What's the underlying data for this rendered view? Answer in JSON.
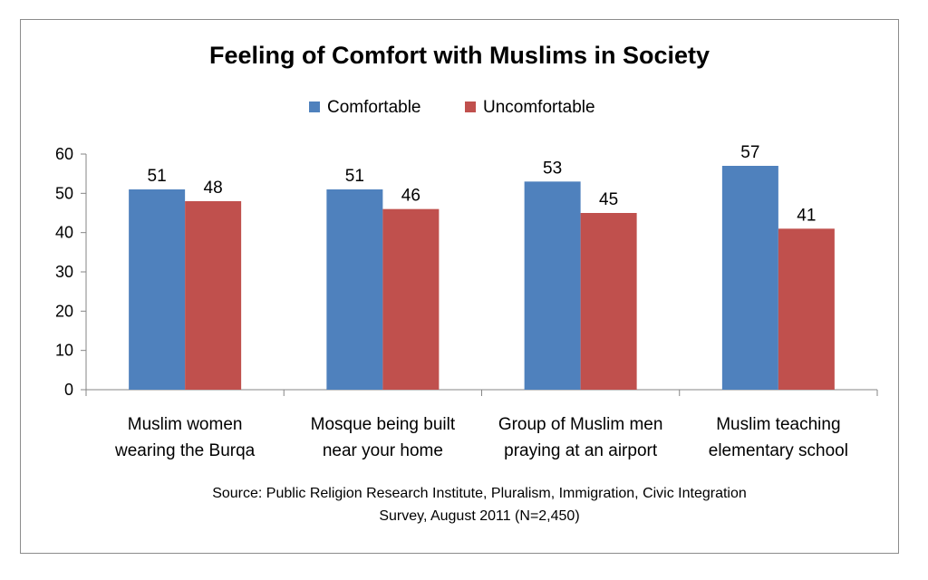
{
  "chart_data": {
    "type": "bar",
    "title": "Feeling of Comfort with Muslims in Society",
    "categories": [
      [
        "Muslim women",
        "wearing the Burqa"
      ],
      [
        "Mosque being built",
        "near your home"
      ],
      [
        "Group of Muslim men",
        "praying at an airport"
      ],
      [
        "Muslim teaching",
        "elementary school"
      ]
    ],
    "series": [
      {
        "name": "Comfortable",
        "color": "#4f81bd",
        "values": [
          51,
          51,
          53,
          57
        ]
      },
      {
        "name": "Uncomfortable",
        "color": "#c0504d",
        "values": [
          48,
          46,
          45,
          41
        ]
      }
    ],
    "ylim": [
      0,
      60
    ],
    "yticks": [
      0,
      10,
      20,
      30,
      40,
      50,
      60
    ],
    "grid": false,
    "legend_position": "top",
    "source_lines": [
      "Source: Public Religion Research Institute, Pluralism, Immigration, Civic Integration",
      "Survey, August 2011  (N=2,450)"
    ]
  }
}
